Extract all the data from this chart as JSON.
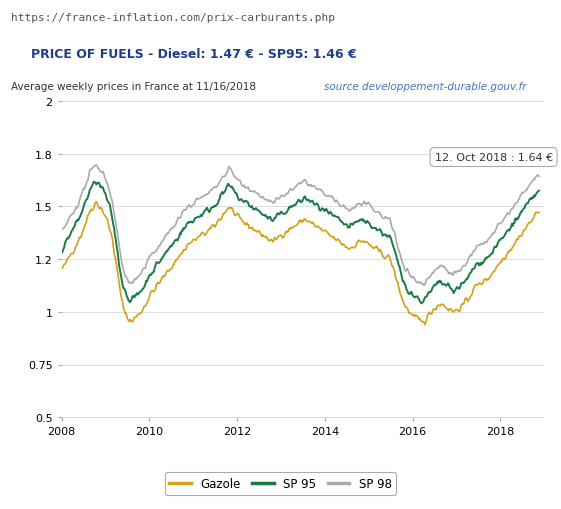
{
  "url_text": "https://france-inflation.com/prix-carburants.php",
  "title_box": "PRICE OF FUELS - Diesel: 1.47 € - SP95: 1.46 €",
  "subtitle": "Average weekly prices in France at 11/16/2018",
  "source_text": "source developpement-durable.gouv.fr",
  "annotation": "12. Oct 2018 : 1.64 €",
  "legend_labels": [
    "Gazole",
    "SP 95",
    "SP 98"
  ],
  "colors": {
    "gazole": "#D4A017",
    "sp95": "#1A7A4A",
    "sp98": "#AAAAAA",
    "background": "#FFFFFF",
    "url_bg": "#E8E8E8",
    "title_border": "#4472C4",
    "title_text": "#1F3C88",
    "subtitle_text": "#333333",
    "source_link": "#4472C4",
    "grid": "#DDDDDD",
    "annotation_box_bg": "#FFFFFF",
    "annotation_box_border": "#AAAAAA"
  },
  "ylim": [
    0.5,
    2.0
  ],
  "yticks": [
    0.5,
    0.75,
    1.0,
    1.25,
    1.5,
    1.75,
    2.0
  ],
  "xlim_start": 2008.0,
  "xlim_end": 2019.0,
  "xticks": [
    2008,
    2010,
    2012,
    2014,
    2016,
    2018
  ]
}
